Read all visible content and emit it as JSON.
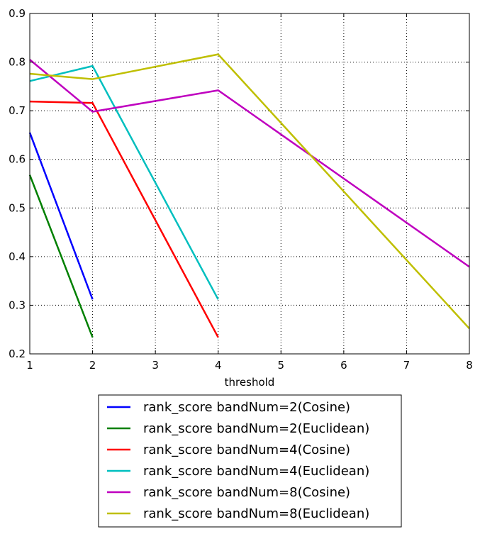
{
  "chart_data": {
    "type": "line",
    "title": "",
    "xlabel": "threshold",
    "ylabel": "",
    "xlim": [
      1,
      8
    ],
    "ylim": [
      0.2,
      0.9
    ],
    "xticks": [
      1,
      2,
      3,
      4,
      5,
      6,
      7,
      8
    ],
    "yticks": [
      0.2,
      0.3,
      0.4,
      0.5,
      0.6,
      0.7,
      0.8,
      0.9
    ],
    "grid": true,
    "legend_position": "below plot",
    "series": [
      {
        "name": "rank_score bandNum=2(Cosine)",
        "color": "#0000ff",
        "x": [
          1,
          2
        ],
        "y": [
          0.655,
          0.312
        ]
      },
      {
        "name": "rank_score bandNum=2(Euclidean)",
        "color": "#008000",
        "x": [
          1,
          2
        ],
        "y": [
          0.568,
          0.234
        ]
      },
      {
        "name": "rank_score bandNum=4(Cosine)",
        "color": "#ff0000",
        "x": [
          1,
          2,
          4
        ],
        "y": [
          0.719,
          0.716,
          0.234
        ]
      },
      {
        "name": "rank_score bandNum=4(Euclidean)",
        "color": "#00bfbf",
        "x": [
          1,
          2,
          4
        ],
        "y": [
          0.761,
          0.792,
          0.312
        ]
      },
      {
        "name": "rank_score bandNum=8(Cosine)",
        "color": "#bf00bf",
        "x": [
          1,
          2,
          4,
          8
        ],
        "y": [
          0.805,
          0.698,
          0.742,
          0.379
        ]
      },
      {
        "name": "rank_score bandNum=8(Euclidean)",
        "color": "#bfbf00",
        "x": [
          1,
          2,
          4,
          8
        ],
        "y": [
          0.776,
          0.765,
          0.816,
          0.252
        ]
      }
    ]
  }
}
